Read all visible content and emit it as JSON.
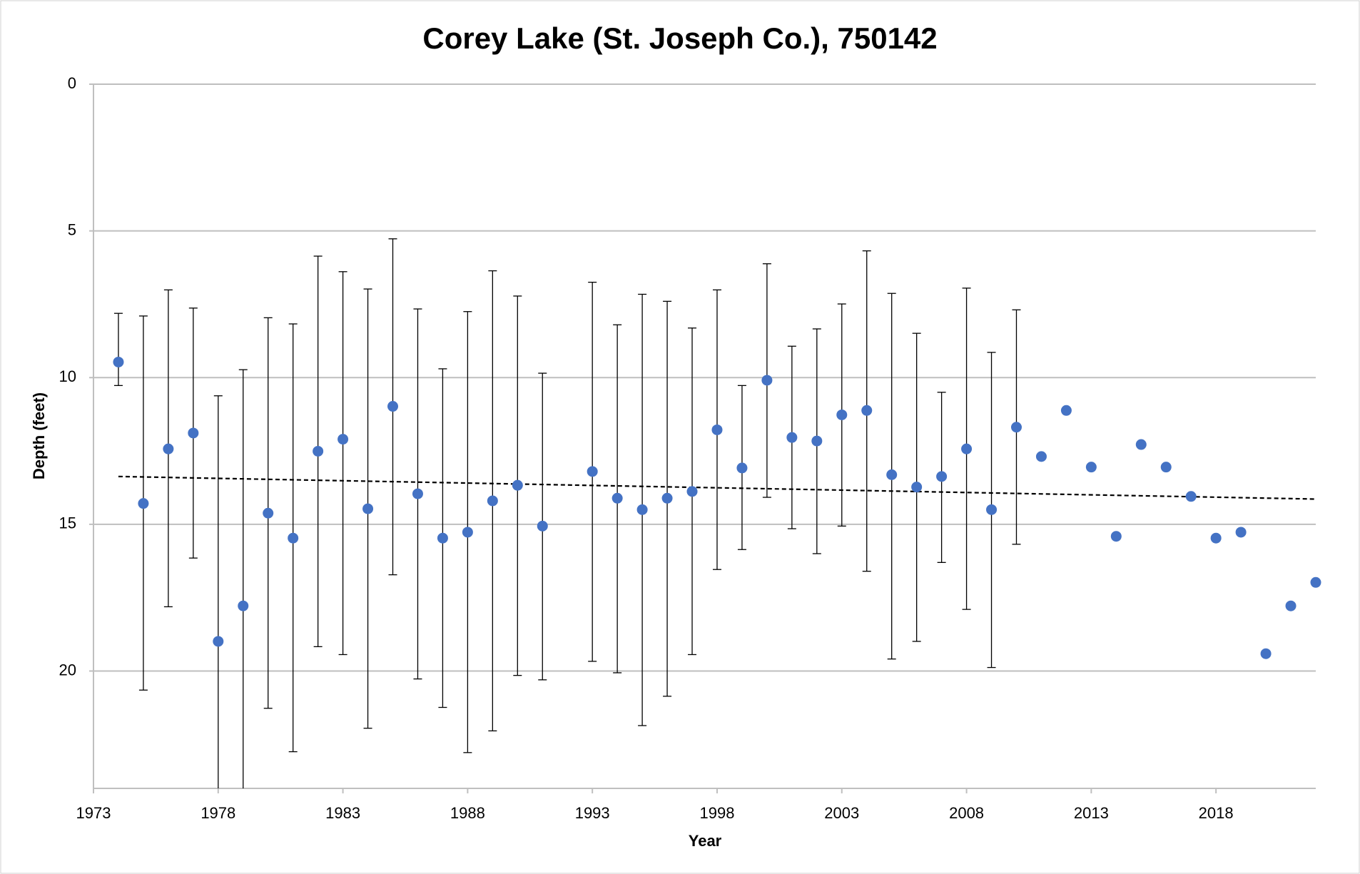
{
  "chart_data": {
    "type": "scatter",
    "title": "Corey Lake (St. Joseph Co.), 750142",
    "x_label": "Year",
    "y_label": "Depth (feet)",
    "x": [
      1974,
      1975,
      1976,
      1977,
      1978,
      1979,
      1980,
      1981,
      1982,
      1983,
      1984,
      1985,
      1986,
      1987,
      1988,
      1989,
      1990,
      1991,
      1993,
      1994,
      1995,
      1996,
      1997,
      1998,
      1999,
      2000,
      2001,
      2002,
      2003,
      2004,
      2005,
      2006,
      2007,
      2008,
      2009,
      2010,
      2011,
      2012,
      2013,
      2014,
      2015,
      2016,
      2017,
      2018,
      2019,
      2020,
      2021,
      2022
    ],
    "values": [
      9.47,
      14.29,
      12.43,
      11.89,
      18.99,
      17.78,
      14.62,
      15.47,
      12.51,
      12.1,
      14.47,
      10.98,
      13.96,
      15.47,
      15.27,
      14.2,
      13.67,
      15.06,
      13.2,
      14.11,
      14.5,
      14.11,
      13.88,
      11.78,
      13.08,
      10.09,
      12.04,
      12.16,
      11.27,
      11.12,
      13.31,
      13.73,
      13.37,
      12.43,
      14.5,
      11.69,
      12.69,
      11.12,
      13.05,
      15.41,
      12.28,
      13.05,
      14.05,
      15.47,
      15.27,
      19.41,
      17.78,
      16.98
    ],
    "error_min": [
      7.81,
      7.9,
      7.01,
      7.63,
      10.62,
      9.73,
      7.96,
      8.17,
      5.86,
      6.39,
      6.98,
      5.27,
      7.66,
      9.7,
      7.75,
      6.36,
      7.22,
      9.85,
      6.75,
      8.2,
      7.16,
      7.4,
      8.31,
      7.01,
      10.27,
      6.12,
      8.93,
      8.34,
      7.49,
      5.68,
      7.13,
      8.49,
      10.5,
      6.95,
      9.14,
      7.69,
      null,
      null,
      null,
      null,
      null,
      null,
      null,
      null,
      null,
      null,
      null,
      null
    ],
    "error_max": [
      10.27,
      20.65,
      17.81,
      16.15,
      27.4,
      25.8,
      21.27,
      22.75,
      19.17,
      19.44,
      21.95,
      16.72,
      20.27,
      21.24,
      22.78,
      22.04,
      20.15,
      20.3,
      19.67,
      20.06,
      21.86,
      20.86,
      19.44,
      16.54,
      15.86,
      14.08,
      15.15,
      16.0,
      15.06,
      16.6,
      19.59,
      18.99,
      16.3,
      17.9,
      19.88,
      15.68,
      null,
      null,
      null,
      null,
      null,
      null,
      null,
      null,
      null,
      null,
      null,
      null
    ],
    "color": "#4472c4",
    "trendline": {
      "x": [
        1974,
        2022
      ],
      "values": [
        13.37,
        14.14
      ],
      "color": "#000000",
      "dashed": true
    },
    "xlim": [
      1973,
      2022
    ],
    "xticks": [
      1973,
      1978,
      1983,
      1988,
      1993,
      1998,
      2003,
      2008,
      2013,
      2018
    ],
    "ylim": [
      0,
      24
    ],
    "yticks": [
      0,
      5,
      10,
      15,
      20
    ],
    "y_reversed": true,
    "grid": true
  }
}
